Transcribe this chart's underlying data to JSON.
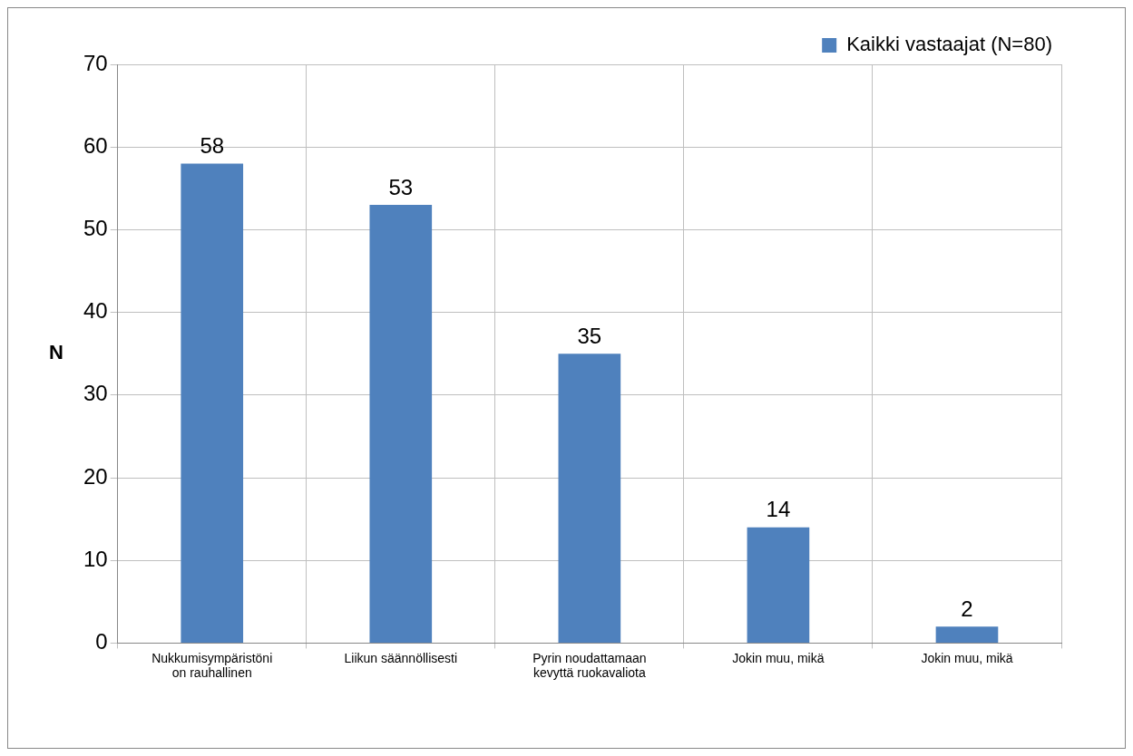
{
  "chart_data": {
    "type": "bar",
    "ylabel": "N",
    "categories": [
      "Nukkumisympäristöni on rauhallinen",
      "Liikun säännöllisesti",
      "Pyrin noudattamaan kevyttä ruokavaliota",
      "Jokin muu, mikä",
      "Jokin muu, mikä"
    ],
    "series": [
      {
        "name": "Kaikki vastaajat (N=80)",
        "color": "#4f81bd",
        "values": [
          58,
          53,
          35,
          14,
          2
        ]
      }
    ],
    "ylim": [
      0,
      70
    ],
    "yticks": [
      0,
      10,
      20,
      30,
      40,
      50,
      60,
      70
    ],
    "grid": true,
    "legend": "top right",
    "data_labels": true
  }
}
